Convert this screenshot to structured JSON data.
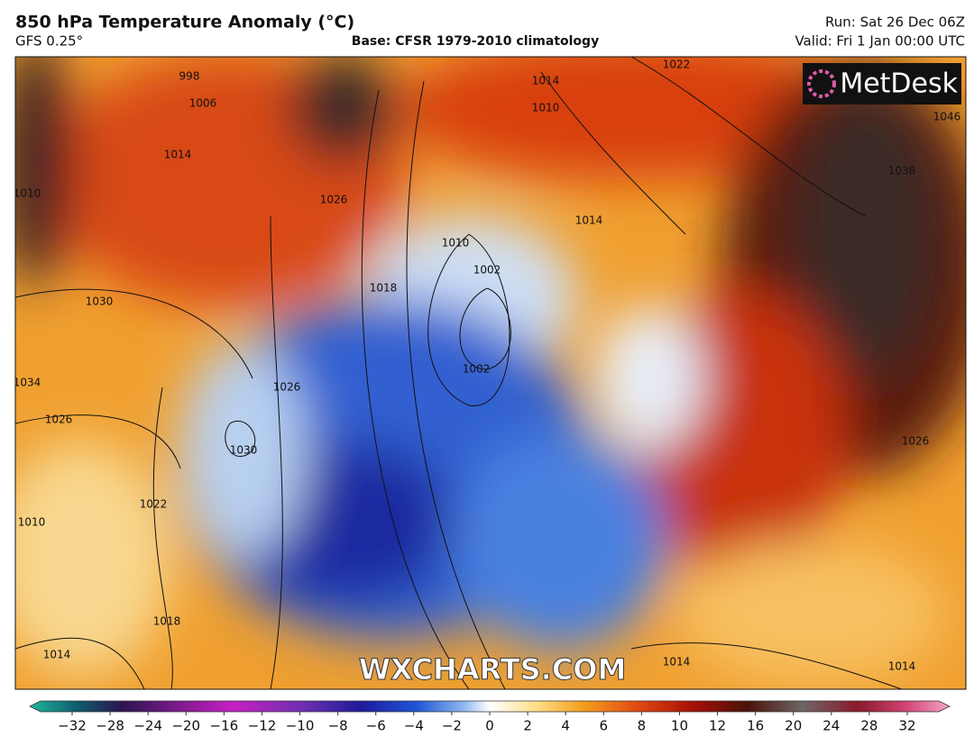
{
  "header": {
    "title": "850 hPa Temperature Anomaly (°C)",
    "model": "GFS 0.25°",
    "base": "Base: CFSR 1979-2010 climatology",
    "run": "Run: Sat 26 Dec 06Z",
    "valid": "Valid: Fri 1 Jan 00:00 UTC"
  },
  "map": {
    "logo": "MetDesk",
    "watermark": "WXCHARTS.COM",
    "isobar_labels": [
      "1014",
      "1026",
      "1010",
      "1030",
      "1034",
      "1026",
      "1030",
      "1026",
      "1022",
      "1010",
      "1018",
      "1014",
      "1018",
      "1010",
      "1002",
      "1002",
      "1014",
      "1010",
      "1014",
      "1022",
      "1038",
      "1046",
      "1026",
      "1014",
      "1014",
      "1006",
      "998"
    ]
  },
  "colorbar": {
    "labels": [
      "−32",
      "−28",
      "−24",
      "−20",
      "−16",
      "−12",
      "−10",
      "−8",
      "−6",
      "−4",
      "−2",
      "0",
      "2",
      "4",
      "6",
      "8",
      "10",
      "12",
      "16",
      "20",
      "24",
      "28",
      "32"
    ]
  }
}
